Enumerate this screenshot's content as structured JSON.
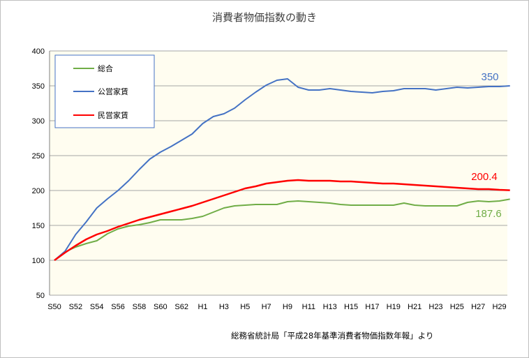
{
  "chart_data": {
    "type": "line",
    "title": "消費者物価指数の動き",
    "source": "総務省統計局「平成28年基準消費者物価指数年報」より",
    "ylim": [
      50,
      400
    ],
    "yticks": [
      50,
      100,
      150,
      200,
      250,
      300,
      350,
      400
    ],
    "grid": true,
    "legend": "top-left",
    "background": "#fffdf0",
    "x": [
      "S50",
      "S51",
      "S52",
      "S53",
      "S54",
      "S55",
      "S56",
      "S57",
      "S58",
      "S59",
      "S60",
      "S61",
      "S62",
      "S63",
      "H1",
      "H2",
      "H3",
      "H4",
      "H5",
      "H6",
      "H7",
      "H8",
      "H9",
      "H10",
      "H11",
      "H12",
      "H13",
      "H14",
      "H15",
      "H16",
      "H17",
      "H18",
      "H19",
      "H20",
      "H21",
      "H22",
      "H23",
      "H24",
      "H25",
      "H26",
      "H27",
      "H28",
      "H29",
      "H30"
    ],
    "xtick_labels": [
      "S50",
      "S52",
      "S54",
      "S56",
      "S58",
      "S60",
      "S62",
      "H1",
      "H3",
      "H5",
      "H7",
      "H9",
      "H11",
      "H13",
      "H15",
      "H17",
      "H19",
      "H21",
      "H23",
      "H25",
      "H27",
      "H29"
    ],
    "series": [
      {
        "name": "総合",
        "color": "#70ad47",
        "values": [
          100,
          112,
          119,
          124,
          128,
          138,
          145,
          149,
          151,
          154,
          158,
          158,
          158,
          160,
          163,
          169,
          175,
          178,
          179,
          180,
          180,
          180,
          184,
          185,
          184,
          183,
          182,
          180,
          179,
          179,
          179,
          179,
          179,
          182,
          179,
          178,
          178,
          178,
          178,
          183,
          185,
          184,
          185,
          187.6
        ],
        "end_label": "187.6"
      },
      {
        "name": "公営家賃",
        "color": "#4472c4",
        "values": [
          100,
          113,
          137,
          155,
          175,
          188,
          200,
          214,
          230,
          245,
          255,
          263,
          272,
          281,
          296,
          306,
          310,
          318,
          330,
          341,
          351,
          358,
          360,
          348,
          344,
          344,
          346,
          344,
          342,
          341,
          340,
          342,
          343,
          346,
          346,
          346,
          344,
          346,
          348,
          347,
          348,
          349,
          349,
          350
        ],
        "end_label": "350"
      },
      {
        "name": "民営家賃",
        "color": "#ff0000",
        "values": [
          100,
          111,
          121,
          130,
          137,
          142,
          148,
          153,
          158,
          162,
          166,
          170,
          174,
          178,
          183,
          188,
          193,
          198,
          203,
          206,
          210,
          212,
          214,
          215,
          214,
          214,
          214,
          213,
          213,
          212,
          211,
          210,
          210,
          209,
          208,
          207,
          206,
          205,
          204,
          203,
          202,
          202,
          201,
          200.4
        ],
        "end_label": "200.4"
      }
    ]
  }
}
